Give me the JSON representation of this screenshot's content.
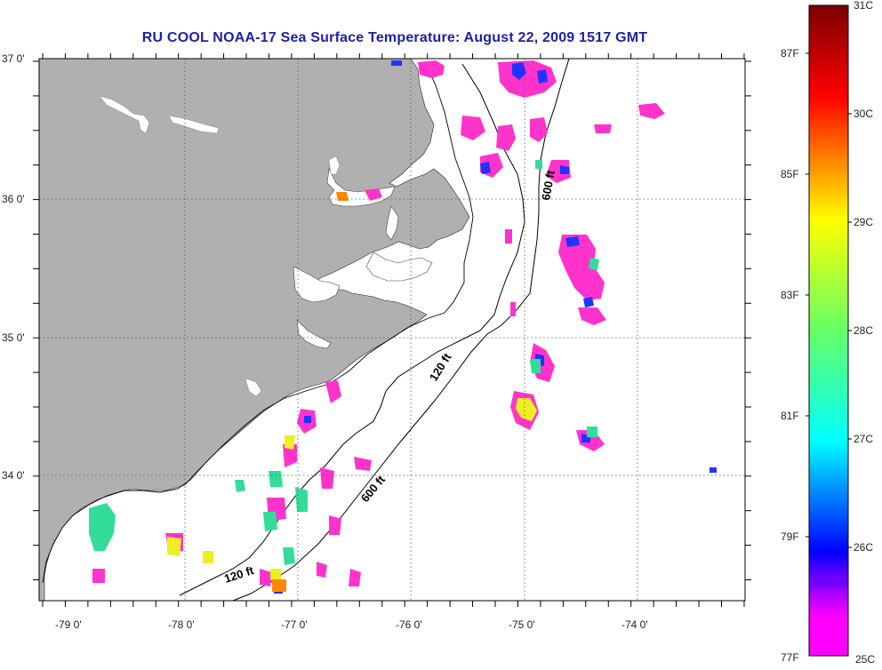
{
  "title": "RU COOL  NOAA-17  Sea Surface Temperature:  August 22, 2009 1517 GMT",
  "map": {
    "lat_labels": [
      "37 0'",
      "36 0'",
      "35 0'",
      "34 0'"
    ],
    "lon_labels": [
      "-79 0'",
      "-78 0'",
      "-77 0'",
      "-76 0'",
      "-75 0'",
      "-74 0'"
    ],
    "contour_labels": [
      "600 ft",
      "120 ft",
      "600 ft",
      "120 ft"
    ],
    "colors": {
      "land": "#b0b0b0",
      "frame": "#000000",
      "grid": "#555555"
    }
  },
  "colorbar": {
    "celsius_labels": [
      "31C",
      "30C",
      "29C",
      "28C",
      "27C",
      "26C",
      "25C"
    ],
    "fahrenheit_labels": [
      "87F",
      "85F",
      "83F",
      "81F",
      "79F",
      "77F"
    ],
    "gradient_colors": [
      "#7a0000",
      "#ff0000",
      "#ff8800",
      "#ffff00",
      "#66ff66",
      "#00ffff",
      "#0000ff",
      "#8800ff",
      "#ff00ff"
    ]
  }
}
